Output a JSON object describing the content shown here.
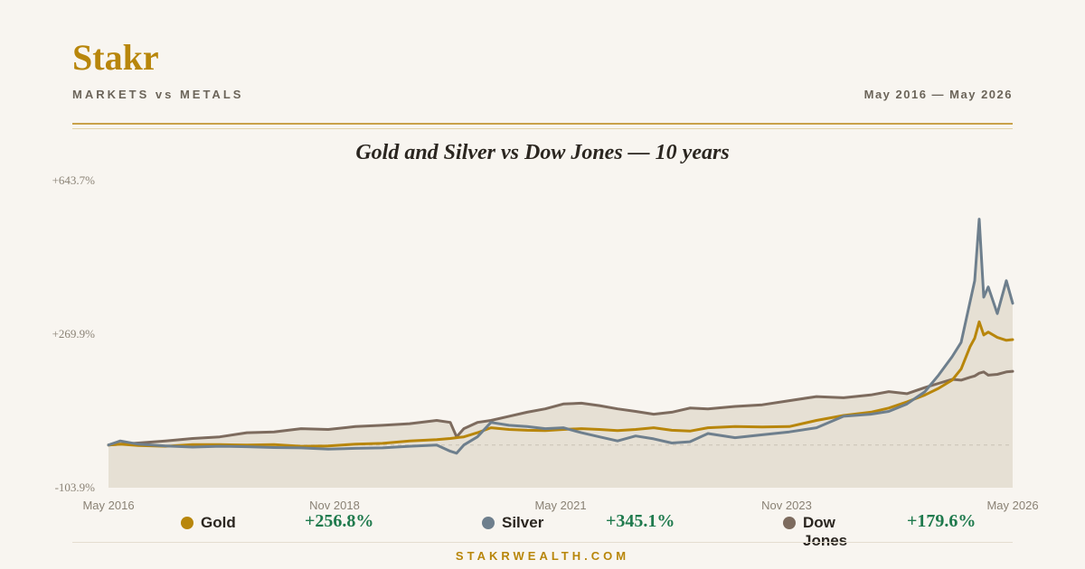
{
  "brand": "Stakr",
  "subtitle": "MARKETS vs METALS",
  "date_range": "May 2016 — May 2026",
  "footer": "STAKRWEALTH.COM",
  "chart_data": {
    "type": "line",
    "title": "Gold and Silver vs Dow Jones — 10 years",
    "y_unit": "%",
    "ylim": [
      -103.9,
      643.7
    ],
    "y_ticks": [
      "+643.7%",
      "+269.9%",
      "-103.9%"
    ],
    "y_tick_values": [
      643.7,
      269.9,
      -103.9
    ],
    "x_ticks": [
      "May 2016",
      "Nov 2018",
      "May 2021",
      "Nov 2023",
      "May 2026"
    ],
    "x_tick_values": [
      2016.37,
      2018.87,
      2021.37,
      2023.87,
      2026.37
    ],
    "x": [
      2016.37,
      2016.5,
      2016.7,
      2017.0,
      2017.3,
      2017.6,
      2017.9,
      2018.2,
      2018.5,
      2018.8,
      2019.1,
      2019.4,
      2019.7,
      2020.0,
      2020.15,
      2020.22,
      2020.3,
      2020.45,
      2020.6,
      2020.8,
      2021.0,
      2021.2,
      2021.4,
      2021.6,
      2021.8,
      2022.0,
      2022.2,
      2022.4,
      2022.6,
      2022.8,
      2023.0,
      2023.3,
      2023.6,
      2023.9,
      2024.2,
      2024.5,
      2024.8,
      2025.0,
      2025.2,
      2025.4,
      2025.55,
      2025.7,
      2025.8,
      2025.9,
      2025.95,
      2026.0,
      2026.05,
      2026.1,
      2026.2,
      2026.3,
      2026.37
    ],
    "series": [
      {
        "name": "Gold",
        "color": "#b8860b",
        "total_return": "+256.8%",
        "values": [
          0,
          2,
          -1,
          -3,
          1,
          1,
          0,
          1,
          -3,
          -2,
          2,
          4,
          10,
          13,
          16,
          18,
          20,
          30,
          42,
          38,
          36,
          35,
          38,
          40,
          38,
          35,
          38,
          42,
          36,
          34,
          42,
          45,
          44,
          45,
          60,
          72,
          80,
          90,
          105,
          122,
          138,
          158,
          185,
          240,
          260,
          300,
          268,
          275,
          262,
          255,
          256.8
        ]
      },
      {
        "name": "Silver",
        "color": "#6e7f8d",
        "total_return": "+345.1%",
        "values": [
          0,
          10,
          2,
          -2,
          -5,
          -3,
          -4,
          -6,
          -7,
          -10,
          -8,
          -7,
          -3,
          0,
          -15,
          -20,
          0,
          20,
          55,
          48,
          45,
          40,
          42,
          30,
          20,
          10,
          22,
          15,
          5,
          8,
          28,
          18,
          25,
          32,
          42,
          70,
          75,
          82,
          100,
          130,
          170,
          215,
          250,
          350,
          400,
          550,
          360,
          385,
          320,
          400,
          345.1
        ]
      },
      {
        "name": "Dow Jones",
        "color": "#7d6b5e",
        "total_return": "+179.6%",
        "values": [
          0,
          2,
          5,
          10,
          16,
          20,
          30,
          32,
          40,
          38,
          45,
          48,
          52,
          60,
          55,
          20,
          40,
          55,
          60,
          70,
          80,
          88,
          100,
          102,
          96,
          88,
          82,
          75,
          80,
          90,
          88,
          94,
          98,
          108,
          118,
          115,
          122,
          130,
          125,
          140,
          150,
          160,
          158,
          165,
          168,
          175,
          178,
          170,
          172,
          178,
          179.6
        ]
      }
    ]
  }
}
